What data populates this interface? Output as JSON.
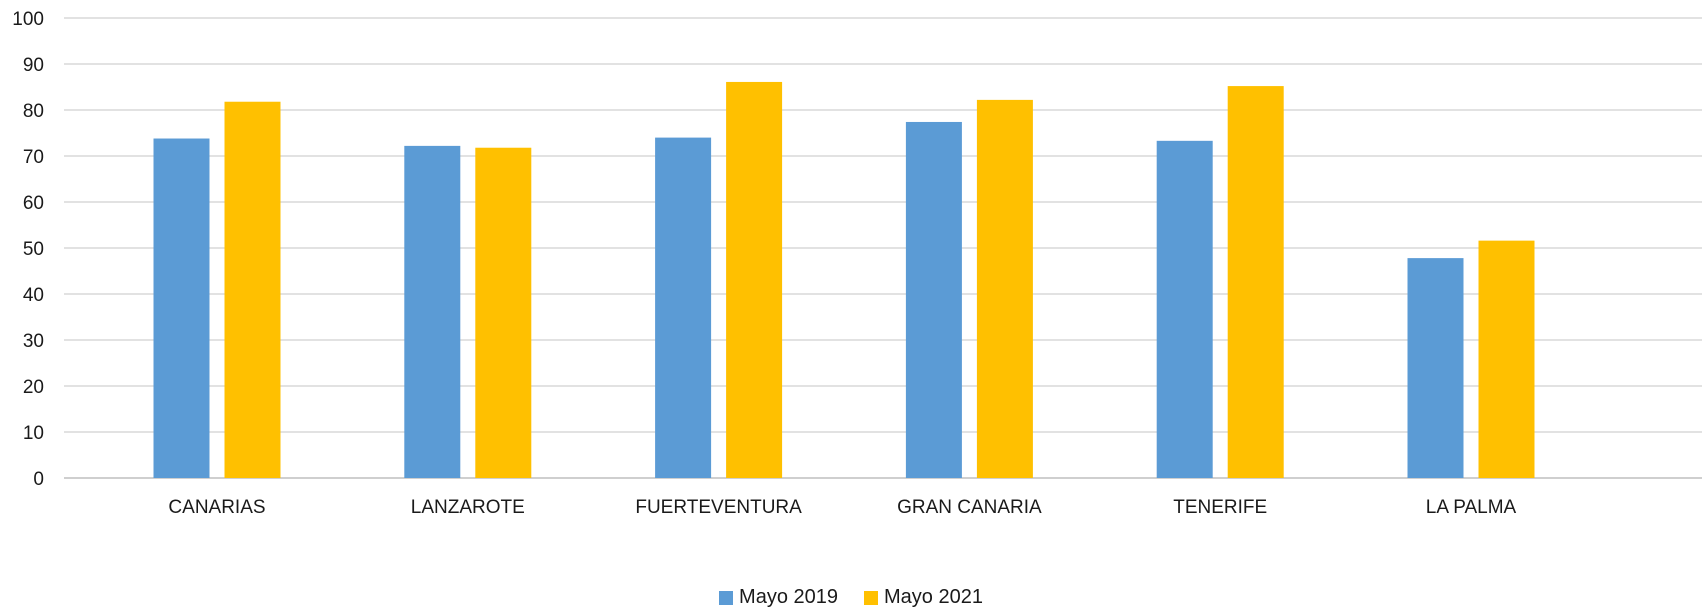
{
  "chart_data": {
    "type": "bar",
    "categories": [
      "CANARIAS",
      "LANZAROTE",
      "FUERTEVENTURA",
      "GRAN CANARIA",
      "TENERIFE",
      "LA PALMA"
    ],
    "series": [
      {
        "name": "Mayo 2019",
        "color": "#5B9BD5",
        "values": [
          73.8,
          72.2,
          74.0,
          77.4,
          73.3,
          47.8
        ]
      },
      {
        "name": "Mayo 2021",
        "color": "#FFC000",
        "values": [
          81.8,
          71.8,
          86.1,
          82.2,
          85.2,
          51.6
        ]
      }
    ],
    "ylim": [
      0,
      100
    ],
    "yticks": [
      0,
      10,
      20,
      30,
      40,
      50,
      60,
      70,
      80,
      90,
      100
    ],
    "grid": true,
    "legend_position": "bottom",
    "title": "",
    "xlabel": "",
    "ylabel": ""
  }
}
